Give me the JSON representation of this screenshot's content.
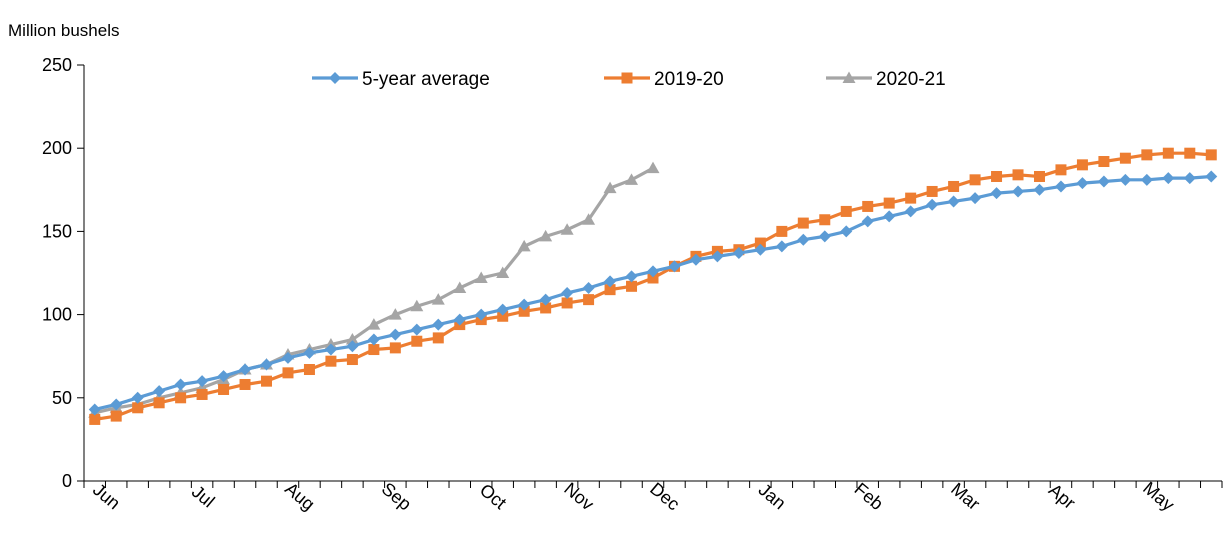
{
  "chart_data": {
    "type": "line",
    "title": "",
    "ylabel": "Million bushels",
    "xlabel": "",
    "ylim": [
      0,
      250
    ],
    "yticks": [
      0,
      50,
      100,
      150,
      200,
      250
    ],
    "month_labels": [
      "Jun",
      "Jul",
      "Aug",
      "Sep",
      "Oct",
      "Nov",
      "Dec",
      "Jan",
      "Feb",
      "Mar",
      "Apr",
      "May"
    ],
    "grid": false,
    "legend": "top-center",
    "series": [
      {
        "name": "5-year average",
        "color": "#5B9BD5",
        "marker": "diamond",
        "values": [
          43,
          46,
          50,
          54,
          58,
          60,
          63,
          67,
          70,
          74,
          77,
          79,
          81,
          85,
          88,
          91,
          94,
          97,
          100,
          103,
          106,
          109,
          113,
          116,
          120,
          123,
          126,
          129,
          133,
          135,
          137,
          139,
          141,
          145,
          147,
          150,
          156,
          159,
          162,
          166,
          168,
          170,
          173,
          174,
          175,
          177,
          179,
          180,
          181,
          181,
          182,
          182,
          183
        ]
      },
      {
        "name": "2019-20",
        "color": "#ED7D31",
        "marker": "square",
        "values": [
          37,
          39,
          44,
          47,
          50,
          52,
          55,
          58,
          60,
          65,
          67,
          72,
          73,
          79,
          80,
          84,
          86,
          94,
          97,
          99,
          102,
          104,
          107,
          109,
          115,
          117,
          122,
          129,
          135,
          138,
          139,
          143,
          150,
          155,
          157,
          162,
          165,
          167,
          170,
          174,
          177,
          181,
          183,
          184,
          183,
          187,
          190,
          192,
          194,
          196,
          197,
          197,
          196
        ]
      },
      {
        "name": "2020-21",
        "color": "#A5A5A5",
        "marker": "triangle",
        "values": [
          41,
          44,
          46,
          50,
          53,
          56,
          61,
          67,
          70,
          76,
          79,
          82,
          85,
          94,
          100,
          105,
          109,
          116,
          122,
          125,
          141,
          147,
          151,
          157,
          176,
          181,
          188
        ]
      }
    ]
  }
}
